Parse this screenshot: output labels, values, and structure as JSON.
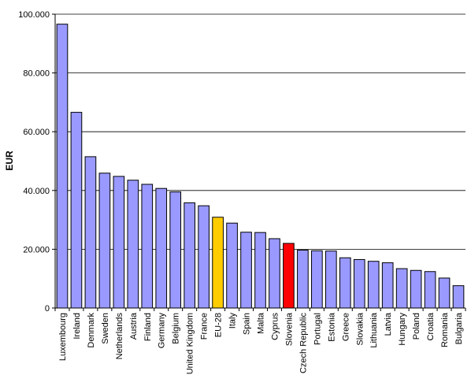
{
  "chart_data": {
    "type": "bar",
    "title": "",
    "xlabel": "",
    "ylabel": "EUR",
    "ylim": [
      0,
      100000
    ],
    "yticks": [
      0,
      20000,
      40000,
      60000,
      80000,
      100000
    ],
    "ytick_labels": [
      "0",
      "20.000",
      "40.000",
      "60.000",
      "80.000",
      "100.000"
    ],
    "grid": "horizontal",
    "legend": "none",
    "colors": {
      "default": "#9999ff",
      "highlight_eu": "#ffcc00",
      "highlight_si": "#ff0000"
    },
    "categories": [
      "Luxembourg",
      "Ireland",
      "Denmark",
      "Sweden",
      "Netherlands",
      "Austria",
      "Finland",
      "Germany",
      "Belgium",
      "United Kingdom",
      "France",
      "EU-28",
      "Italy",
      "Spain",
      "Malta",
      "Cyprus",
      "Slovenia",
      "Czech Republic",
      "Portugal",
      "Estonia",
      "Greece",
      "Slovakia",
      "Lithuania",
      "Latvia",
      "Hungary",
      "Poland",
      "Croatia",
      "Romania",
      "Bulgaria"
    ],
    "values": [
      96600,
      66600,
      51500,
      45900,
      44800,
      43500,
      42100,
      40700,
      39500,
      35800,
      34800,
      30900,
      28900,
      25800,
      25700,
      23600,
      22000,
      19700,
      19500,
      19400,
      17100,
      16500,
      15900,
      15400,
      13400,
      12800,
      12400,
      10200,
      7600
    ],
    "bar_colors": [
      "default",
      "default",
      "default",
      "default",
      "default",
      "default",
      "default",
      "default",
      "default",
      "default",
      "default",
      "highlight_eu",
      "default",
      "default",
      "default",
      "default",
      "highlight_si",
      "default",
      "default",
      "default",
      "default",
      "default",
      "default",
      "default",
      "default",
      "default",
      "default",
      "default",
      "default"
    ]
  }
}
